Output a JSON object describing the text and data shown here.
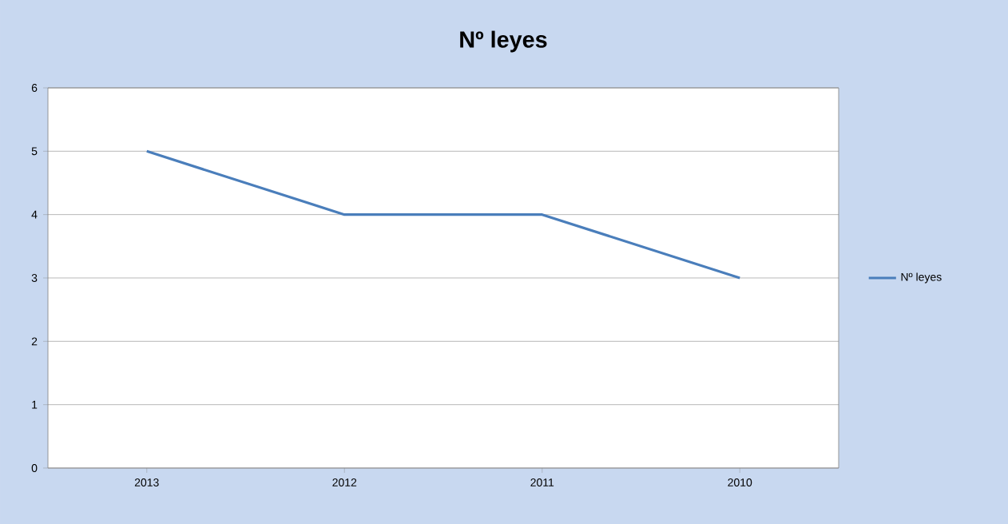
{
  "chart_data": {
    "type": "line",
    "title": "Nº leyes",
    "categories": [
      "2013",
      "2012",
      "2011",
      "2010"
    ],
    "series": [
      {
        "name": "Nº leyes",
        "color": "#4a7ebb",
        "values": [
          5,
          4,
          4,
          3
        ]
      }
    ],
    "ylim": [
      0,
      6
    ],
    "yticks": [
      0,
      1,
      2,
      3,
      4,
      5,
      6
    ],
    "grid": "y",
    "legend": "right",
    "marker": "none",
    "line_style": "solid"
  }
}
